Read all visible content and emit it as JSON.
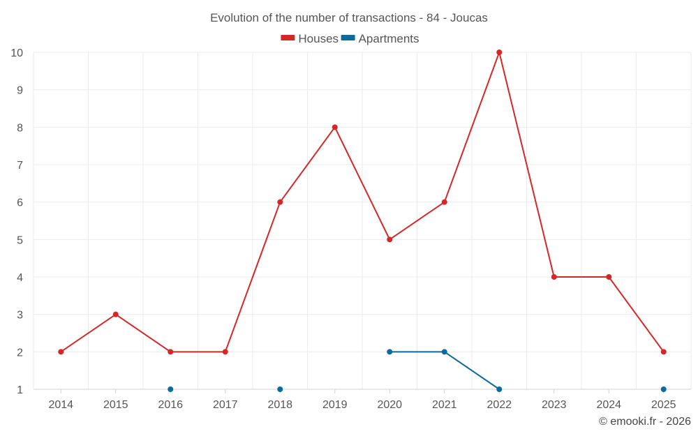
{
  "chart_data": {
    "type": "line",
    "title": "Evolution of the number of transactions - 84 - Joucas",
    "categories": [
      "2014",
      "2015",
      "2016",
      "2017",
      "2018",
      "2019",
      "2020",
      "2021",
      "2022",
      "2023",
      "2024",
      "2025"
    ],
    "series": [
      {
        "name": "Houses",
        "color": "#d62728",
        "values": [
          2,
          3,
          2,
          2,
          6,
          8,
          5,
          6,
          10,
          4,
          4,
          2
        ]
      },
      {
        "name": "Apartments",
        "color": "#0b6a9e",
        "values": [
          null,
          null,
          1,
          null,
          1,
          null,
          2,
          2,
          1,
          null,
          null,
          1
        ]
      }
    ],
    "ylim": [
      1,
      10
    ],
    "yticks": [
      "1",
      "2",
      "3",
      "4",
      "5",
      "6",
      "7",
      "8",
      "9",
      "10"
    ],
    "xlabel": "",
    "ylabel": "",
    "grid": true,
    "legend_position": "top-center"
  },
  "credit": "© emooki.fr - 2026"
}
